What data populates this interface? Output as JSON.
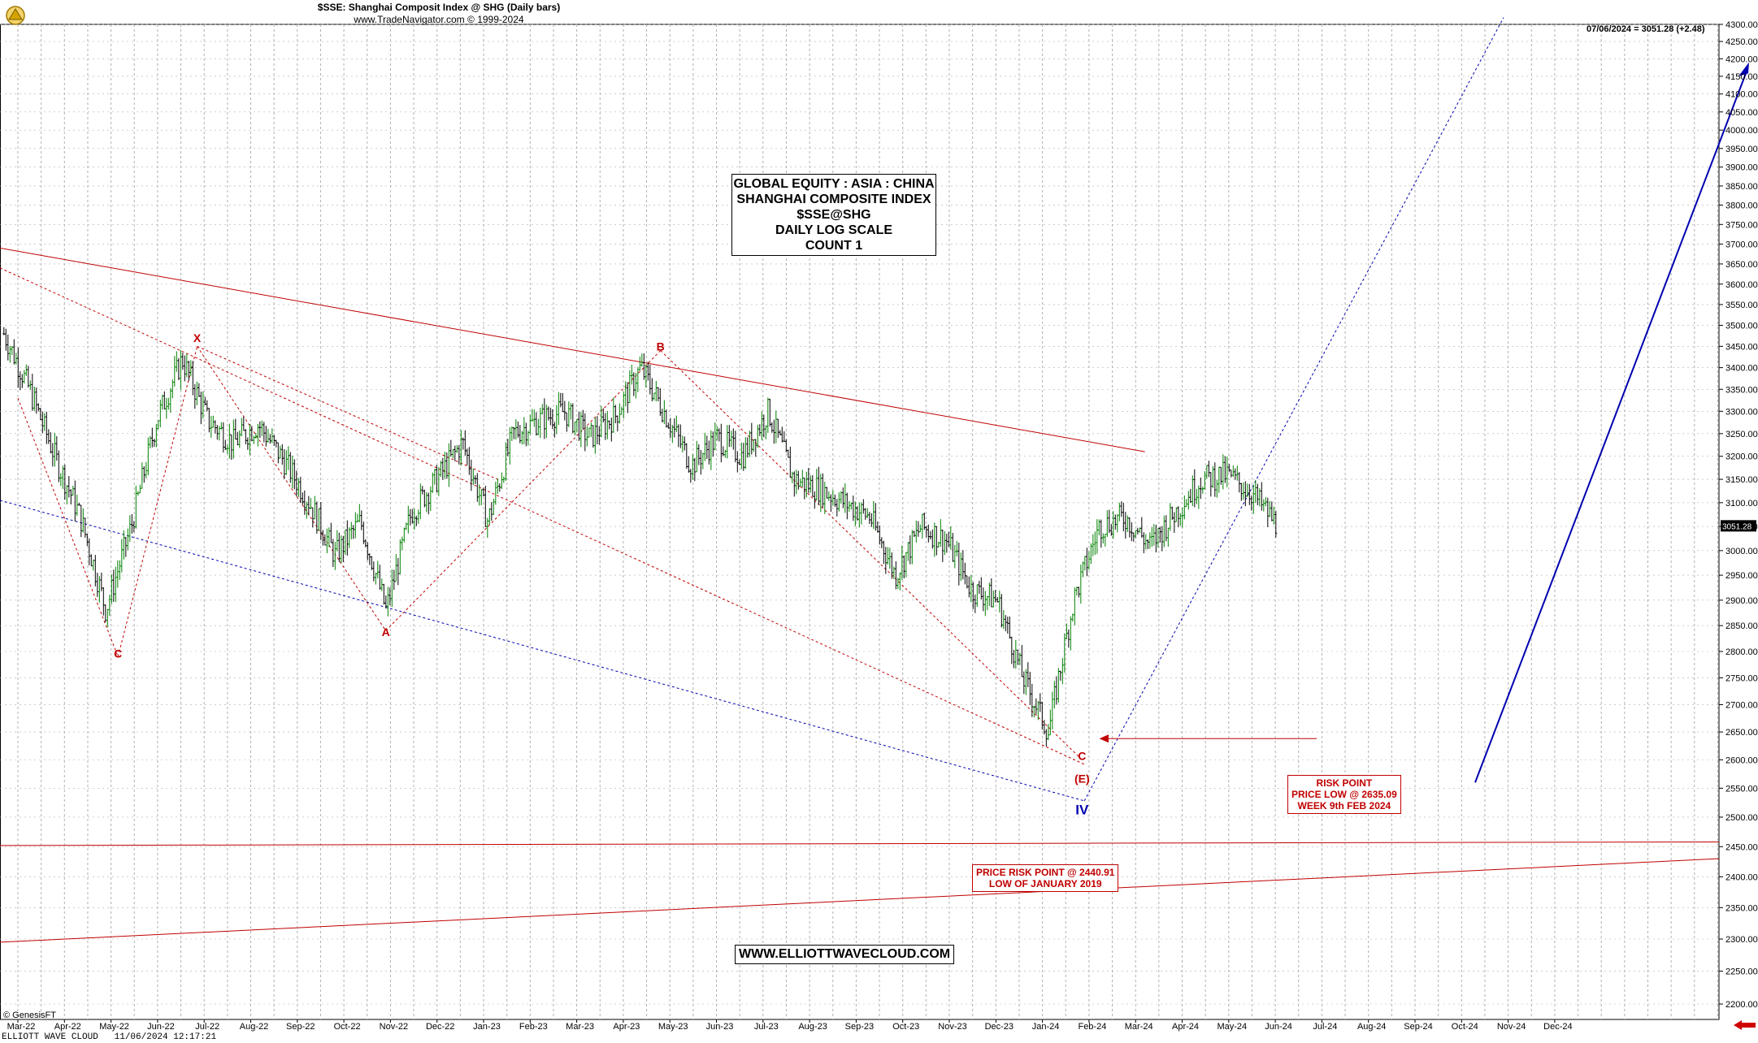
{
  "header": {
    "title": "$SSE:  Shanghai Composit Index @ SHG  (Daily bars)",
    "subtitle": "www.TradeNavigator.com © 1999-2024",
    "last_value": "07/06/2024 = 3051.28 (+2.48)"
  },
  "info_box": {
    "lines": [
      "GLOBAL EQUITY : ASIA : CHINA",
      "SHANGHAI COMPOSITE INDEX",
      "$SSE@SHG",
      "DAILY LOG SCALE",
      "COUNT 1"
    ]
  },
  "website": "WWW.ELLIOTTWAVECLOUD.COM",
  "risk_point_box": {
    "lines": [
      "RISK POINT",
      "PRICE LOW @ 2635.09",
      "WEEK 9th FEB 2024"
    ]
  },
  "price_risk_box": {
    "lines": [
      "PRICE RISK POINT @ 2440.91",
      "LOW OF JANUARY 2019"
    ]
  },
  "copyright": "© GenesisFT",
  "footer": "ELLIOTT WAVE CLOUD   11/06/2024 12:17:21",
  "colors": {
    "red": "#c00000",
    "blue": "#0000b0",
    "grid": "#b0b0b0",
    "up_bar": "#008000",
    "down_bar": "#000000"
  },
  "chart_data": {
    "type": "ohlc",
    "scale": "log",
    "ylim": [
      2175,
      4325
    ],
    "y_ticks": [
      2200,
      2250,
      2300,
      2350,
      2400,
      2450,
      2500,
      2550,
      2600,
      2650,
      2700,
      2750,
      2800,
      2850,
      2900,
      2950,
      3000,
      3050,
      3100,
      3150,
      3200,
      3250,
      3300,
      3350,
      3400,
      3450,
      3500,
      3550,
      3600,
      3650,
      3700,
      3750,
      3800,
      3850,
      3900,
      3950,
      4000,
      4050,
      4100,
      4150,
      4200,
      4250,
      4300
    ],
    "x_ticks": [
      "Mar-22",
      "Apr-22",
      "May-22",
      "Jun-22",
      "Jul-22",
      "Aug-22",
      "Sep-22",
      "Oct-22",
      "Nov-22",
      "Dec-22",
      "Jan-23",
      "Feb-23",
      "Mar-23",
      "Apr-23",
      "May-23",
      "Jun-23",
      "Jul-23",
      "Aug-23",
      "Sep-23",
      "Oct-23",
      "Nov-23",
      "Dec-23",
      "Jan-24",
      "Feb-24",
      "Mar-24",
      "Apr-24",
      "May-24",
      "Jun-24",
      "Jul-24",
      "Aug-24",
      "Sep-24",
      "Oct-24",
      "Nov-24",
      "Dec-24"
    ],
    "price_path": [
      [
        "Mar-22",
        3480
      ],
      [
        "Mar-22",
        3350
      ],
      [
        "Apr-22",
        3200
      ],
      [
        "Apr-22",
        3070
      ],
      [
        "May-22",
        2880
      ],
      [
        "May-22",
        3050
      ],
      [
        "Jun-22",
        3280
      ],
      [
        "Jul-22",
        3420
      ],
      [
        "Jul-22",
        3280
      ],
      [
        "Aug-22",
        3230
      ],
      [
        "Aug-22",
        3270
      ],
      [
        "Sep-22",
        3190
      ],
      [
        "Sep-22",
        3100
      ],
      [
        "Oct-22",
        2990
      ],
      [
        "Oct-22",
        3060
      ],
      [
        "Nov-22",
        2880
      ],
      [
        "Nov-22",
        3080
      ],
      [
        "Dec-22",
        3150
      ],
      [
        "Dec-22",
        3230
      ],
      [
        "Jan-23",
        3060
      ],
      [
        "Jan-23",
        3250
      ],
      [
        "Feb-23",
        3280
      ],
      [
        "Mar-23",
        3300
      ],
      [
        "Mar-23",
        3240
      ],
      [
        "Apr-23",
        3290
      ],
      [
        "May-23",
        3400
      ],
      [
        "May-23",
        3290
      ],
      [
        "Jun-23",
        3180
      ],
      [
        "Jul-23",
        3240
      ],
      [
        "Jul-23",
        3200
      ],
      [
        "Aug-23",
        3300
      ],
      [
        "Aug-23",
        3150
      ],
      [
        "Sep-23",
        3130
      ],
      [
        "Sep-23",
        3100
      ],
      [
        "Oct-23",
        3070
      ],
      [
        "Oct-23",
        2950
      ],
      [
        "Nov-23",
        3050
      ],
      [
        "Dec-23",
        3020
      ],
      [
        "Dec-23",
        2920
      ],
      [
        "Jan-24",
        2900
      ],
      [
        "Jan-24",
        2750
      ],
      [
        "Feb-24",
        2650
      ],
      [
        "Feb-24",
        2900
      ],
      [
        "Mar-24",
        3050
      ],
      [
        "Mar-24",
        3070
      ],
      [
        "Apr-24",
        3010
      ],
      [
        "Apr-24",
        3080
      ],
      [
        "May-24",
        3150
      ],
      [
        "May-24",
        3160
      ],
      [
        "Jun-24",
        3120
      ],
      [
        "Jun-24",
        3051
      ]
    ],
    "last_close": "3051.28",
    "wave_labels": [
      {
        "text": "C",
        "date": "May-22",
        "price": 2788,
        "color": "red"
      },
      {
        "text": "X",
        "date": "Jul-22",
        "price": 3460,
        "color": "red"
      },
      {
        "text": "A",
        "date": "Nov-22",
        "price": 2830,
        "color": "red"
      },
      {
        "text": "B",
        "date": "May-23",
        "price": 3440,
        "color": "red"
      },
      {
        "text": "C",
        "date": "Feb-24",
        "price": 2600,
        "color": "red"
      },
      {
        "text": "(E)",
        "date": "Feb-24",
        "price": 2560,
        "color": "red"
      },
      {
        "text": "IV",
        "date": "Feb-24",
        "price": 2505,
        "color": "blue"
      }
    ]
  }
}
